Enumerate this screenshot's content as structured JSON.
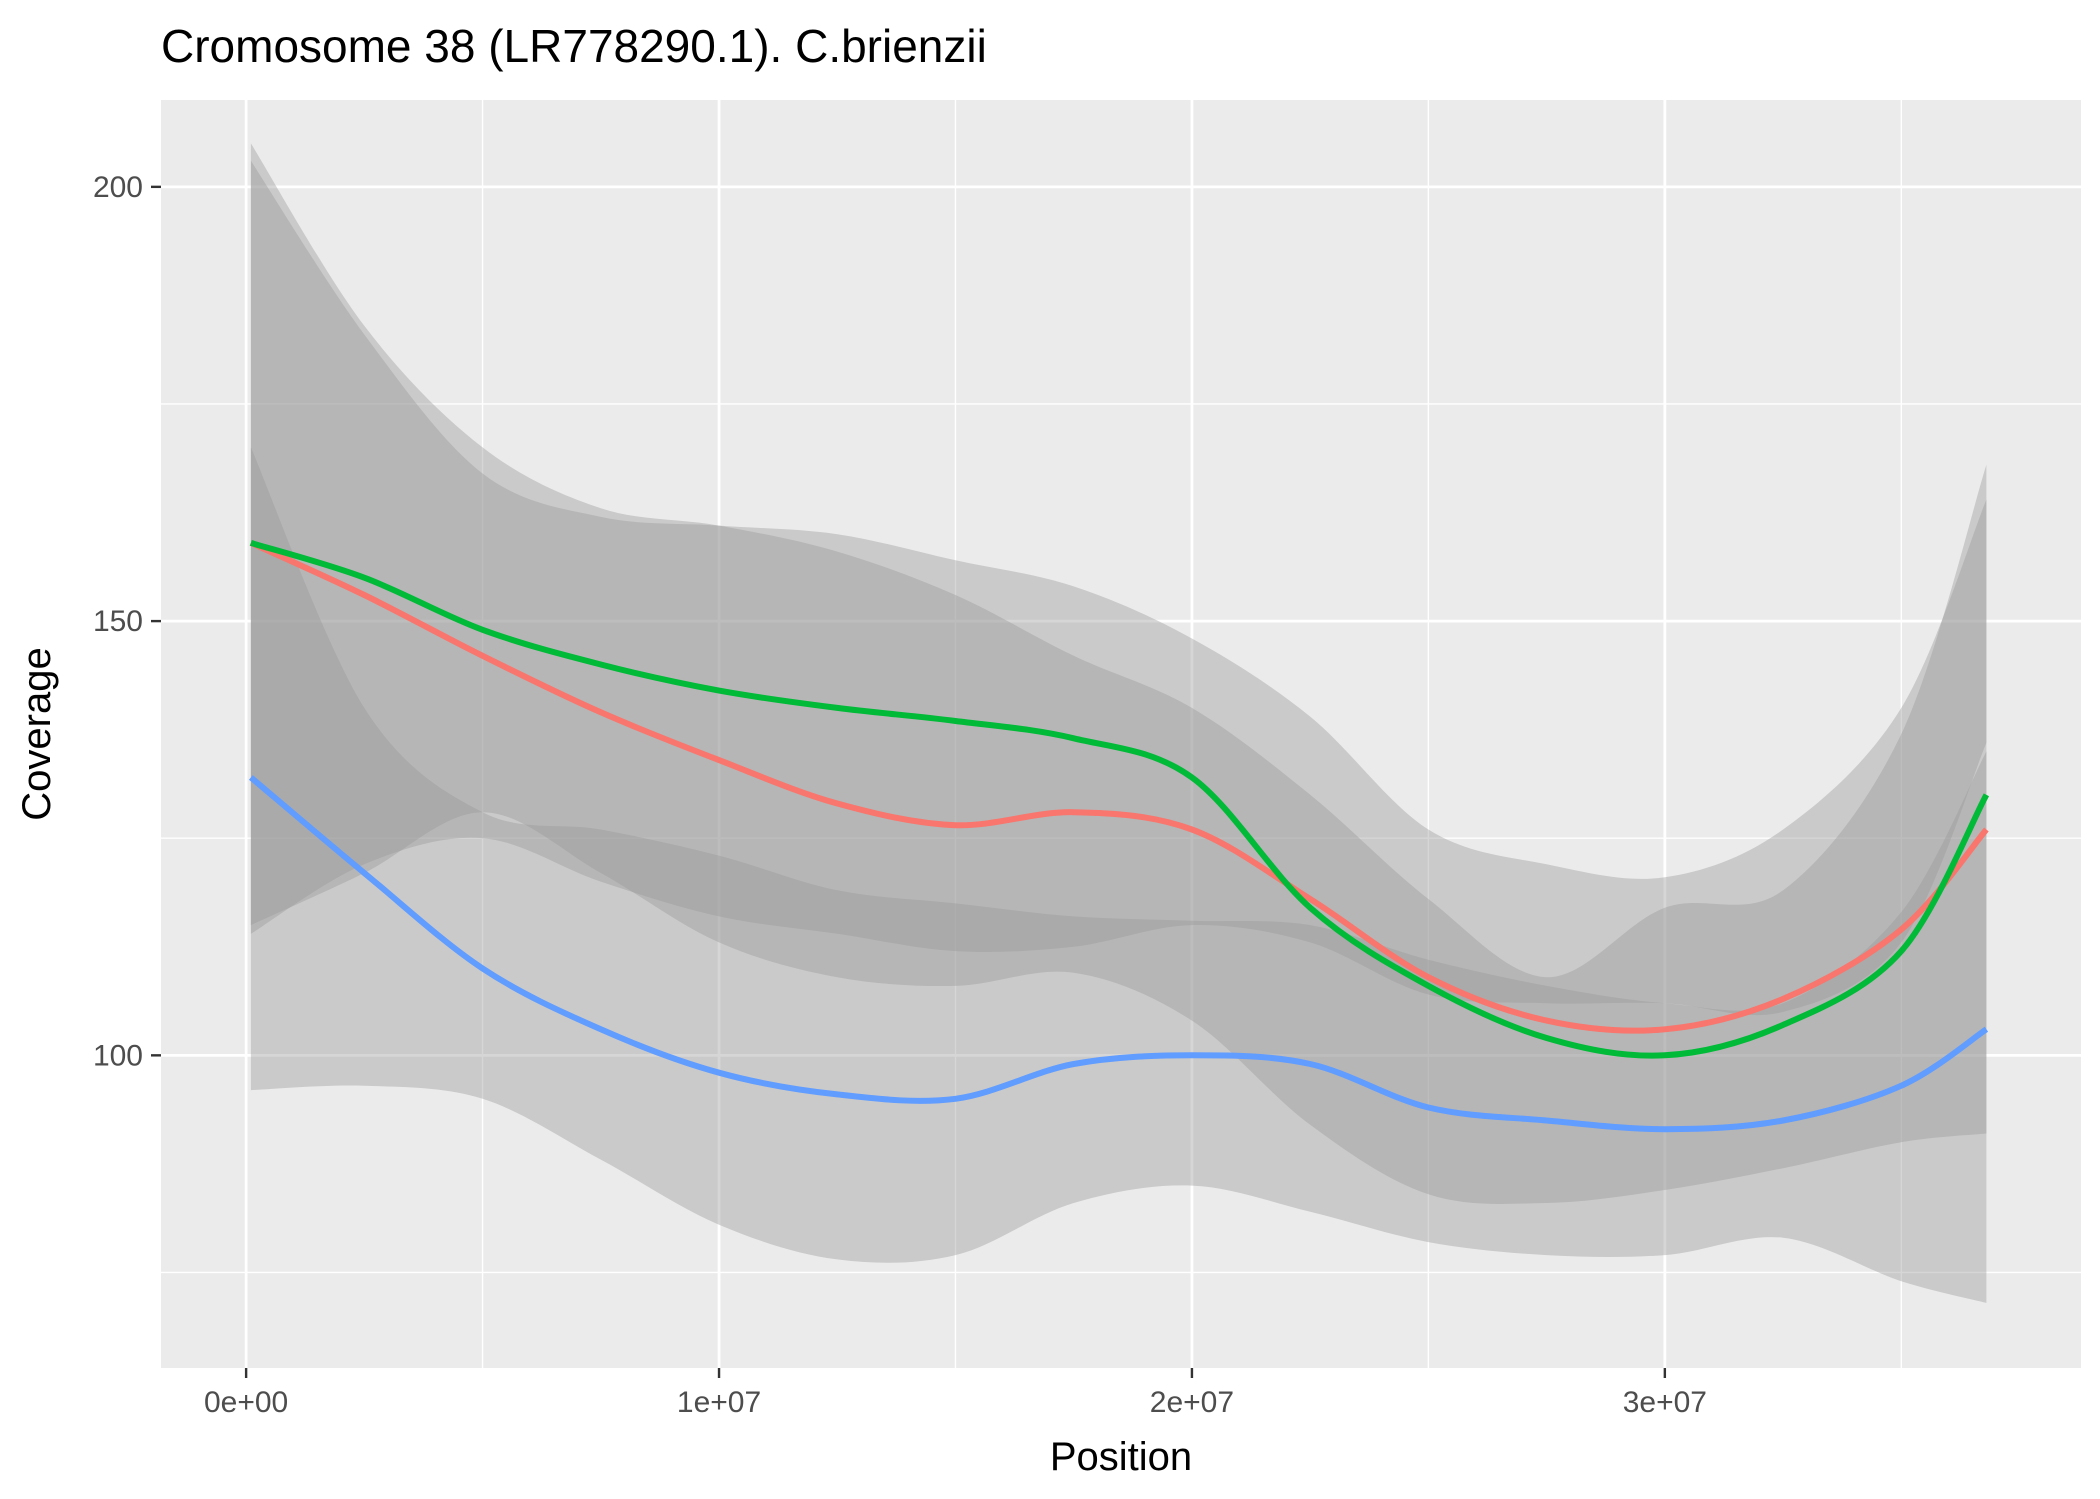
{
  "chart_data": {
    "type": "line",
    "title": "Cromosome 38 (LR778290.1). C.brienzii",
    "xlabel": "Position",
    "ylabel": "Coverage",
    "xlim": [
      -1800000,
      38800000
    ],
    "ylim": [
      64000,
      210000
    ],
    "x_ticks": [
      0,
      10000000,
      20000000,
      30000000
    ],
    "x_tick_labels": [
      "0e+00",
      "1e+07",
      "2e+07",
      "3e+07"
    ],
    "y_ticks": [
      100,
      150,
      200
    ],
    "y_tick_labels": [
      "100",
      "150",
      "200"
    ],
    "ylim_units": [
      64,
      210
    ],
    "grid": true,
    "legend": "none",
    "colors": {
      "panel_bg": "#ebebeb",
      "grid": "#ffffff",
      "band": "#999999",
      "red": "#f8766d",
      "green": "#00ba38",
      "blue": "#619cff"
    },
    "x": [
      100000,
      2500000,
      5000000,
      7500000,
      10000000,
      12500000,
      15000000,
      17500000,
      20000000,
      22500000,
      25000000,
      27500000,
      30000000,
      32500000,
      35000000,
      36800000
    ],
    "series": [
      {
        "color_key": "red",
        "values": [
          159,
          153,
          146,
          139.5,
          134,
          129,
          126.5,
          128,
          126,
          118,
          109,
          104,
          103,
          106.5,
          114.5,
          126
        ],
        "lower": [
          115,
          121,
          128,
          121,
          113,
          109,
          108,
          109.5,
          104,
          92,
          84,
          83,
          84.5,
          87,
          90,
          91
        ],
        "upper": [
          203,
          183,
          167,
          162,
          161,
          160,
          157,
          154,
          148,
          139,
          126,
          122,
          120.5,
          126,
          140,
          164
        ]
      },
      {
        "color_key": "green",
        "values": [
          159,
          155,
          149,
          145,
          142,
          140,
          138.5,
          136.5,
          132,
          117,
          108,
          102,
          100,
          103.5,
          112,
          130
        ],
        "lower": [
          114,
          122,
          125,
          120,
          116,
          114,
          112,
          112.5,
          115,
          113,
          107,
          106,
          106,
          105,
          113,
          136
        ],
        "upper": [
          205,
          184,
          170,
          163,
          161,
          158,
          153,
          146,
          140,
          130,
          118,
          109,
          117,
          119,
          137,
          168
        ]
      },
      {
        "color_key": "blue",
        "values": [
          132,
          121,
          110,
          103,
          98,
          95.5,
          95,
          99,
          100,
          99,
          94,
          92.5,
          91.5,
          92.5,
          96.5,
          103
        ],
        "lower": [
          96,
          96.5,
          95,
          88,
          80.5,
          76.5,
          77,
          83,
          85,
          82,
          78.5,
          77,
          77,
          79,
          74,
          71.5
        ],
        "upper": [
          170,
          140,
          128,
          126,
          123,
          119,
          117.5,
          116,
          115.5,
          115,
          111,
          108,
          106,
          106,
          116.5,
          135
        ]
      }
    ]
  }
}
